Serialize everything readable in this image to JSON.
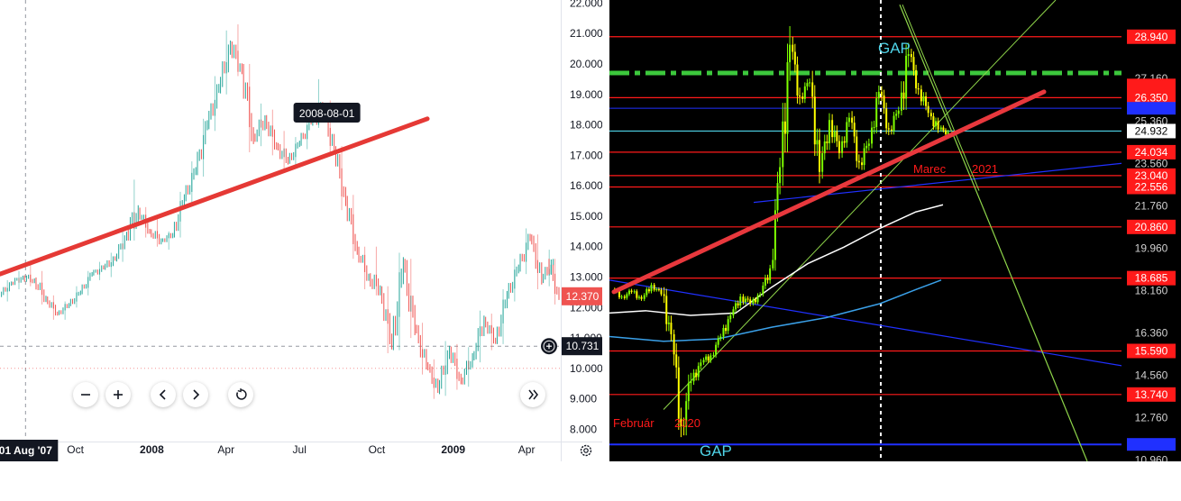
{
  "chart_data": [
    {
      "type": "candlestick",
      "title": "",
      "y_ticks": [
        "22.000",
        "21.000",
        "20.000",
        "19.000",
        "18.000",
        "17.000",
        "16.000",
        "15.000",
        "14.000",
        "13.000",
        "12.000",
        "11.000",
        "10.000",
        "9.000",
        "8.000"
      ],
      "ylim": [
        7.6,
        22.1
      ],
      "x_ticks": [
        "Oct",
        "2008",
        "Apr",
        "Jul",
        "Oct",
        "2009",
        "Apr"
      ],
      "x_cursor_label": "01 Aug '07",
      "xlim": [
        "2007-07-01",
        "2009-05-12"
      ],
      "price_label": "12.370",
      "crosshair_label": "10.731",
      "annotation": "2008-08-01",
      "trendline": {
        "from": {
          "date": "2007-07-01",
          "value": 13.1
        },
        "to": {
          "date": "2008-12-01",
          "value": 18.2
        },
        "color": "#e53935"
      },
      "series": [
        {
          "candles": [
            {
              "d": "2007-07-10",
              "o": 12.4,
              "h": 12.9,
              "l": 12.2,
              "c": 12.8
            },
            {
              "d": "2007-07-24",
              "o": 12.8,
              "h": 13.2,
              "l": 12.6,
              "c": 13.0
            },
            {
              "d": "2007-08-07",
              "o": 13.0,
              "h": 13.4,
              "l": 12.7,
              "c": 12.9
            },
            {
              "d": "2007-08-21",
              "o": 12.9,
              "h": 13.2,
              "l": 12.1,
              "c": 12.3
            },
            {
              "d": "2007-09-04",
              "o": 12.3,
              "h": 12.4,
              "l": 11.6,
              "c": 11.8
            },
            {
              "d": "2007-09-18",
              "o": 11.8,
              "h": 12.2,
              "l": 11.6,
              "c": 12.1
            },
            {
              "d": "2007-10-02",
              "o": 12.1,
              "h": 12.7,
              "l": 12.0,
              "c": 12.5
            },
            {
              "d": "2007-10-16",
              "o": 12.5,
              "h": 13.2,
              "l": 12.4,
              "c": 13.1
            },
            {
              "d": "2007-10-30",
              "o": 13.1,
              "h": 13.5,
              "l": 12.9,
              "c": 13.3
            },
            {
              "d": "2007-11-13",
              "o": 13.3,
              "h": 13.8,
              "l": 13.0,
              "c": 13.6
            },
            {
              "d": "2007-11-27",
              "o": 13.6,
              "h": 14.6,
              "l": 13.5,
              "c": 14.4
            },
            {
              "d": "2007-12-11",
              "o": 14.4,
              "h": 16.2,
              "l": 14.2,
              "c": 15.2
            },
            {
              "d": "2007-12-25",
              "o": 15.2,
              "h": 15.3,
              "l": 14.3,
              "c": 14.5
            },
            {
              "d": "2008-01-08",
              "o": 14.5,
              "h": 14.9,
              "l": 14.0,
              "c": 14.2
            },
            {
              "d": "2008-01-22",
              "o": 14.2,
              "h": 14.5,
              "l": 13.9,
              "c": 14.4
            },
            {
              "d": "2008-02-05",
              "o": 14.4,
              "h": 15.8,
              "l": 14.3,
              "c": 15.6
            },
            {
              "d": "2008-02-19",
              "o": 15.6,
              "h": 16.8,
              "l": 15.4,
              "c": 16.5
            },
            {
              "d": "2008-03-04",
              "o": 16.5,
              "h": 18.2,
              "l": 16.3,
              "c": 18.0
            },
            {
              "d": "2008-03-18",
              "o": 18.0,
              "h": 19.6,
              "l": 17.8,
              "c": 19.2
            },
            {
              "d": "2008-04-01",
              "o": 19.2,
              "h": 21.1,
              "l": 19.0,
              "c": 20.6
            },
            {
              "d": "2008-04-15",
              "o": 20.6,
              "h": 21.3,
              "l": 19.6,
              "c": 19.8
            },
            {
              "d": "2008-04-29",
              "o": 19.8,
              "h": 20.0,
              "l": 17.1,
              "c": 17.6
            },
            {
              "d": "2008-05-13",
              "o": 17.6,
              "h": 18.7,
              "l": 17.3,
              "c": 18.2
            },
            {
              "d": "2008-05-27",
              "o": 18.2,
              "h": 18.5,
              "l": 17.0,
              "c": 17.3
            },
            {
              "d": "2008-06-10",
              "o": 17.3,
              "h": 17.8,
              "l": 16.5,
              "c": 16.8
            },
            {
              "d": "2008-06-24",
              "o": 16.8,
              "h": 17.6,
              "l": 16.6,
              "c": 17.4
            },
            {
              "d": "2008-07-08",
              "o": 17.4,
              "h": 18.3,
              "l": 17.2,
              "c": 18.1
            },
            {
              "d": "2008-07-22",
              "o": 18.1,
              "h": 19.5,
              "l": 17.9,
              "c": 18.5
            },
            {
              "d": "2008-08-05",
              "o": 18.5,
              "h": 18.8,
              "l": 17.0,
              "c": 17.2
            },
            {
              "d": "2008-08-19",
              "o": 17.2,
              "h": 17.3,
              "l": 15.2,
              "c": 15.5
            },
            {
              "d": "2008-09-02",
              "o": 15.5,
              "h": 15.7,
              "l": 13.6,
              "c": 13.9
            },
            {
              "d": "2008-09-16",
              "o": 13.9,
              "h": 14.0,
              "l": 12.6,
              "c": 13.0
            },
            {
              "d": "2008-09-30",
              "o": 13.0,
              "h": 14.0,
              "l": 12.4,
              "c": 12.6
            },
            {
              "d": "2008-10-14",
              "o": 12.6,
              "h": 12.7,
              "l": 10.5,
              "c": 10.8
            },
            {
              "d": "2008-10-28",
              "o": 10.8,
              "h": 13.8,
              "l": 10.6,
              "c": 13.4
            },
            {
              "d": "2008-11-11",
              "o": 13.4,
              "h": 13.6,
              "l": 11.0,
              "c": 11.3
            },
            {
              "d": "2008-11-25",
              "o": 11.3,
              "h": 11.5,
              "l": 9.8,
              "c": 10.1
            },
            {
              "d": "2008-12-09",
              "o": 10.1,
              "h": 10.3,
              "l": 9.0,
              "c": 9.3
            },
            {
              "d": "2008-12-23",
              "o": 9.3,
              "h": 10.9,
              "l": 9.1,
              "c": 10.6
            },
            {
              "d": "2009-01-06",
              "o": 10.6,
              "h": 10.8,
              "l": 9.3,
              "c": 9.6
            },
            {
              "d": "2009-01-20",
              "o": 9.6,
              "h": 10.7,
              "l": 9.4,
              "c": 10.4
            },
            {
              "d": "2009-02-03",
              "o": 10.4,
              "h": 11.9,
              "l": 10.2,
              "c": 11.6
            },
            {
              "d": "2009-02-17",
              "o": 11.6,
              "h": 11.8,
              "l": 10.6,
              "c": 10.9
            },
            {
              "d": "2009-03-03",
              "o": 10.9,
              "h": 12.6,
              "l": 10.8,
              "c": 12.4
            },
            {
              "d": "2009-03-17",
              "o": 12.4,
              "h": 13.6,
              "l": 12.2,
              "c": 13.3
            },
            {
              "d": "2009-03-31",
              "o": 13.3,
              "h": 14.6,
              "l": 13.1,
              "c": 14.3
            },
            {
              "d": "2009-04-14",
              "o": 14.3,
              "h": 14.4,
              "l": 12.6,
              "c": 12.9
            },
            {
              "d": "2009-04-28",
              "o": 12.9,
              "h": 13.9,
              "l": 12.7,
              "c": 13.5
            },
            {
              "d": "2009-05-05",
              "o": 13.5,
              "h": 13.6,
              "l": 12.1,
              "c": 12.37
            }
          ],
          "up_color": "#26a69a",
          "down_color": "#ef5350"
        }
      ]
    },
    {
      "type": "candlestick",
      "title": "",
      "y_ticks": [
        "28.940",
        "27.160",
        "26.350",
        "25.360",
        "24.932",
        "24.034",
        "23.560",
        "23.040",
        "22.556",
        "21.760",
        "20.860",
        "19.960",
        "18.685",
        "18.160",
        "16.360",
        "15.590",
        "14.560",
        "13.740",
        "12.760",
        "10.960"
      ],
      "ylim": [
        10.9,
        30.5
      ],
      "labels": {
        "gap_top": "GAP",
        "gap_bottom": "GAP",
        "februar": "Február",
        "year_2020": "2020",
        "marec": "Marec",
        "year_2021": "2021"
      },
      "horizontal_levels": [
        28.94,
        26.35,
        24.034,
        23.04,
        22.556,
        20.86,
        18.685,
        15.59,
        13.74,
        11.62
      ],
      "marked_levels": [
        27.16,
        26.89,
        25.9,
        24.932
      ],
      "colors": {
        "level": "#ff1a1a",
        "trend": "#e8383d",
        "ma_white": "#ffffff",
        "ma_blue": "#3aa0e8",
        "candle_up": "#7fff00",
        "candle_down": "#ffff00",
        "blue_line": "#2030ff",
        "green_line": "#8fd64a",
        "cyan_line": "#4fd4e8",
        "dash_green": "#3cc83c"
      },
      "candles": [
        {
          "i": 0,
          "o": 18.2,
          "h": 18.5,
          "l": 17.7,
          "c": 17.9
        },
        {
          "i": 1,
          "o": 17.9,
          "h": 18.3,
          "l": 17.5,
          "c": 18.1
        },
        {
          "i": 2,
          "o": 18.1,
          "h": 18.4,
          "l": 17.6,
          "c": 17.8
        },
        {
          "i": 3,
          "o": 17.8,
          "h": 18.6,
          "l": 17.7,
          "c": 18.4
        },
        {
          "i": 4,
          "o": 18.4,
          "h": 18.7,
          "l": 17.9,
          "c": 18.0
        },
        {
          "i": 5,
          "o": 18.0,
          "h": 19.0,
          "l": 16.0,
          "c": 16.3
        },
        {
          "i": 6,
          "o": 16.3,
          "h": 16.5,
          "l": 11.8,
          "c": 12.4
        },
        {
          "i": 7,
          "o": 12.4,
          "h": 14.8,
          "l": 11.2,
          "c": 14.3
        },
        {
          "i": 8,
          "o": 14.3,
          "h": 15.4,
          "l": 13.9,
          "c": 15.1
        },
        {
          "i": 9,
          "o": 15.1,
          "h": 15.6,
          "l": 14.6,
          "c": 15.4
        },
        {
          "i": 10,
          "o": 15.4,
          "h": 16.4,
          "l": 15.2,
          "c": 16.2
        },
        {
          "i": 11,
          "o": 16.2,
          "h": 17.4,
          "l": 16.0,
          "c": 17.1
        },
        {
          "i": 12,
          "o": 17.1,
          "h": 18.1,
          "l": 16.9,
          "c": 17.9
        },
        {
          "i": 13,
          "o": 17.9,
          "h": 18.4,
          "l": 17.3,
          "c": 17.6
        },
        {
          "i": 14,
          "o": 17.6,
          "h": 18.2,
          "l": 17.3,
          "c": 18.0
        },
        {
          "i": 15,
          "o": 18.0,
          "h": 19.4,
          "l": 17.9,
          "c": 19.1
        },
        {
          "i": 16,
          "o": 19.1,
          "h": 23.8,
          "l": 19.0,
          "c": 23.4
        },
        {
          "i": 17,
          "o": 23.4,
          "h": 29.9,
          "l": 22.0,
          "c": 28.6
        },
        {
          "i": 18,
          "o": 28.6,
          "h": 29.2,
          "l": 25.8,
          "c": 26.4
        },
        {
          "i": 19,
          "o": 26.4,
          "h": 27.6,
          "l": 25.9,
          "c": 27.0
        },
        {
          "i": 20,
          "o": 27.0,
          "h": 27.5,
          "l": 22.6,
          "c": 23.2
        },
        {
          "i": 21,
          "o": 23.2,
          "h": 25.8,
          "l": 22.9,
          "c": 25.4
        },
        {
          "i": 22,
          "o": 25.4,
          "h": 26.0,
          "l": 23.5,
          "c": 24.0
        },
        {
          "i": 23,
          "o": 24.0,
          "h": 25.9,
          "l": 23.8,
          "c": 25.5
        },
        {
          "i": 24,
          "o": 25.5,
          "h": 25.9,
          "l": 23.1,
          "c": 23.6
        },
        {
          "i": 25,
          "o": 23.6,
          "h": 24.8,
          "l": 22.7,
          "c": 24.4
        },
        {
          "i": 26,
          "o": 24.4,
          "h": 26.9,
          "l": 24.2,
          "c": 26.6
        },
        {
          "i": 27,
          "o": 26.6,
          "h": 27.0,
          "l": 24.6,
          "c": 25.0
        },
        {
          "i": 28,
          "o": 25.0,
          "h": 26.0,
          "l": 24.3,
          "c": 25.8
        },
        {
          "i": 29,
          "o": 25.8,
          "h": 30.4,
          "l": 25.6,
          "c": 28.2
        },
        {
          "i": 30,
          "o": 28.2,
          "h": 28.6,
          "l": 26.3,
          "c": 26.7
        },
        {
          "i": 31,
          "o": 26.7,
          "h": 27.2,
          "l": 25.4,
          "c": 25.7
        },
        {
          "i": 32,
          "o": 25.7,
          "h": 26.2,
          "l": 24.7,
          "c": 25.0
        },
        {
          "i": 33,
          "o": 25.0,
          "h": 25.3,
          "l": 24.4,
          "c": 24.9
        }
      ]
    }
  ]
}
